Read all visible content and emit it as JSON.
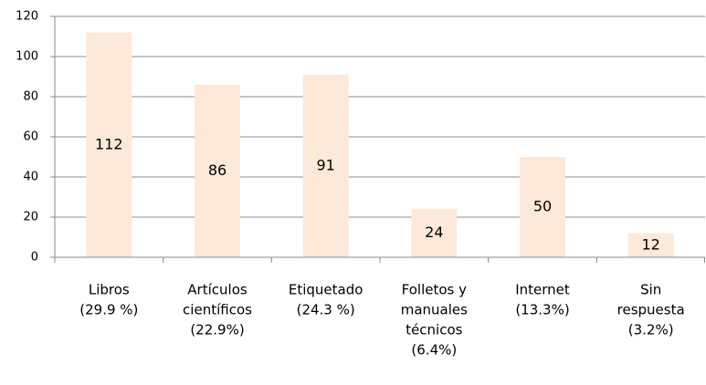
{
  "chart_data": {
    "type": "bar",
    "categories": [
      [
        "Libros",
        "(29.9 %)"
      ],
      [
        "Artículos",
        "científicos",
        "(22.9%)"
      ],
      [
        "Etiquetado",
        "(24.3 %)"
      ],
      [
        "Folletos y",
        "manuales",
        "técnicos",
        "(6.4%)"
      ],
      [
        "Internet",
        "(13.3%)"
      ],
      [
        "Sin",
        "respuesta",
        "(3.2%)"
      ]
    ],
    "values": [
      112,
      86,
      91,
      24,
      50,
      12
    ],
    "color": "#fde9d9",
    "ylim": [
      0,
      120
    ],
    "yticks": [
      0,
      20,
      40,
      60,
      80,
      100,
      120
    ],
    "grid": true
  }
}
